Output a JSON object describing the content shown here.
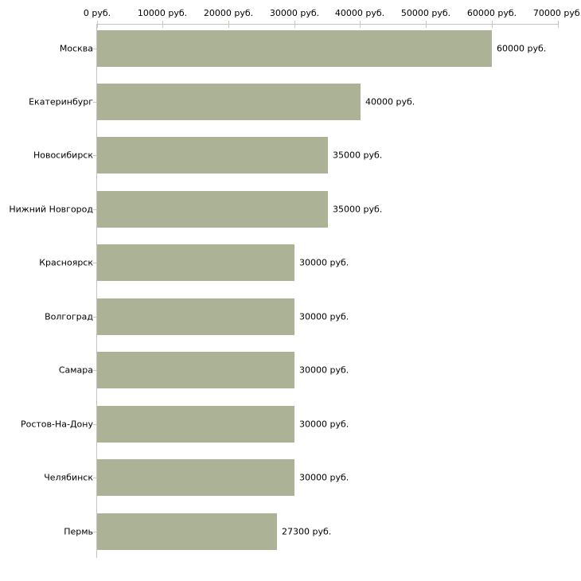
{
  "chart_data": {
    "type": "bar",
    "orientation": "horizontal",
    "title": "",
    "xlabel": "",
    "ylabel": "",
    "unit_suffix": " руб.",
    "categories": [
      "Москва",
      "Екатеринбург",
      "Новосибирск",
      "Нижний Новгород",
      "Красноярск",
      "Волгоград",
      "Самара",
      "Ростов-На-Дону",
      "Челябинск",
      "Пермь"
    ],
    "values": [
      60000,
      40000,
      35000,
      35000,
      30000,
      30000,
      30000,
      30000,
      30000,
      27300
    ],
    "value_labels": [
      "60000 руб.",
      "40000 руб.",
      "35000 руб.",
      "35000 руб.",
      "30000 руб.",
      "30000 руб.",
      "30000 руб.",
      "30000 руб.",
      "30000 руб.",
      "27300 руб."
    ],
    "x_ticks": [
      0,
      10000,
      20000,
      30000,
      40000,
      50000,
      60000,
      70000
    ],
    "x_tick_labels": [
      "0 руб.",
      "10000 руб.",
      "20000 руб.",
      "30000 руб.",
      "40000 руб.",
      "50000 руб.",
      "60000 руб.",
      "70000 руб."
    ],
    "xlim": [
      0,
      70000
    ],
    "grid": false,
    "legend": "none",
    "axis_position": "top",
    "colors": {
      "bar": "#abb296",
      "axis_line": "#c4c4c4",
      "tick_mark": "#c9cba2",
      "text": "#000000",
      "background": "#ffffff"
    }
  }
}
